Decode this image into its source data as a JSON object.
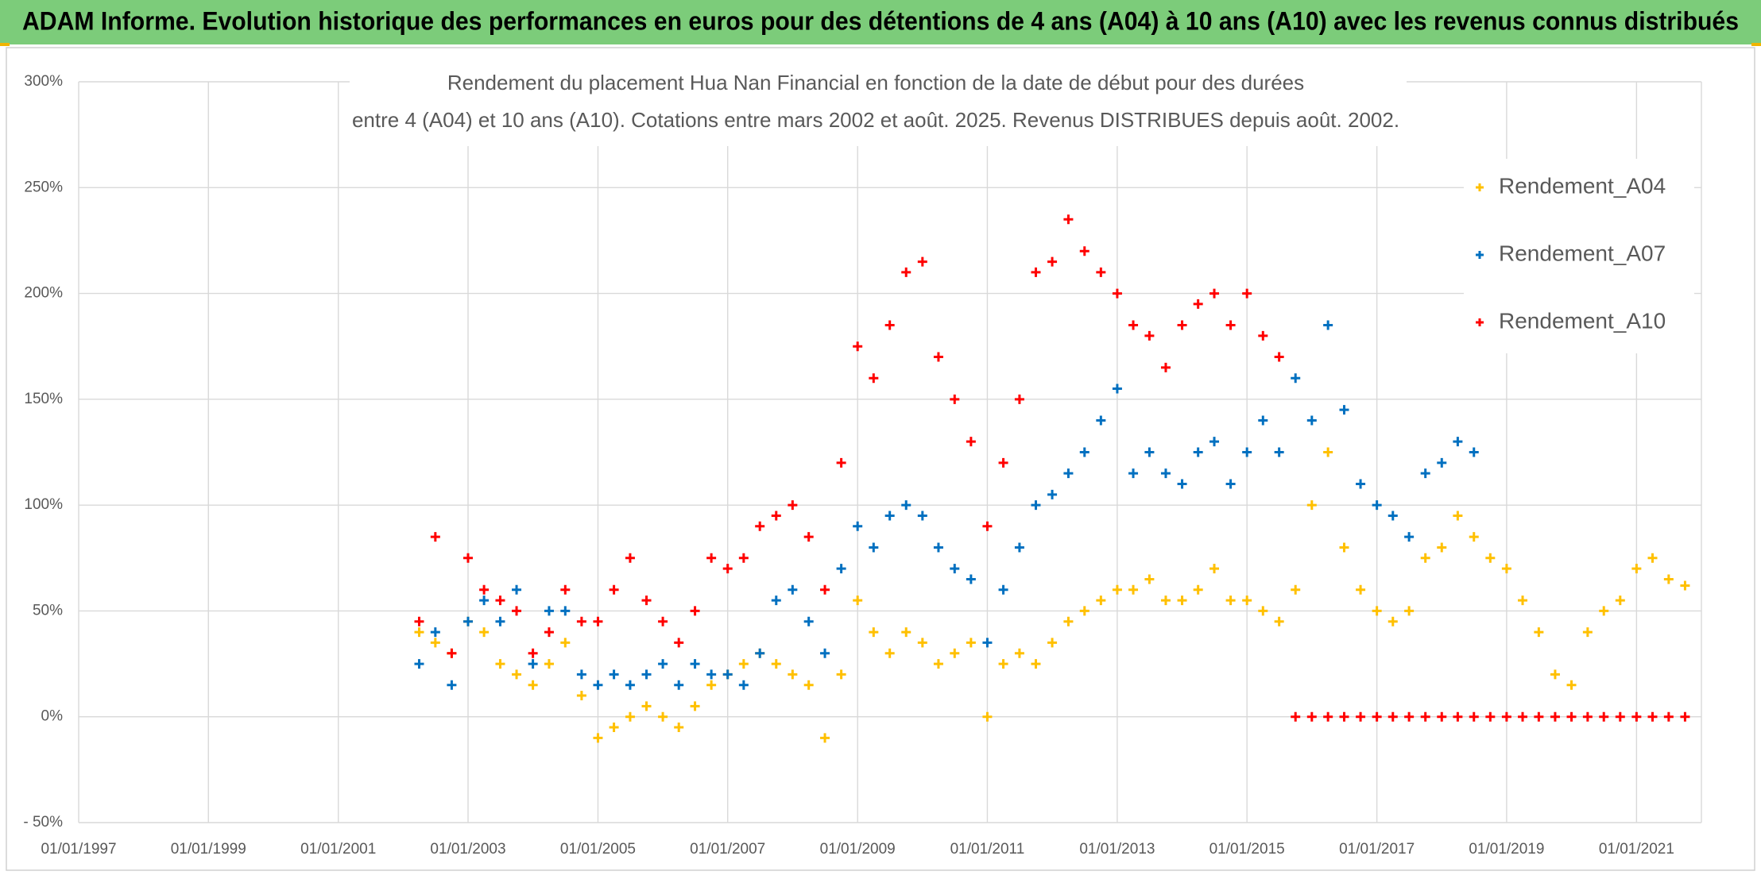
{
  "header": {
    "title": "ADAM Informe. Evolution historique des performances en euros pour des détentions de 4 ans (A04) à 10 ans (A10) avec les revenus connus distribués"
  },
  "chart_data": {
    "type": "scatter",
    "title": [
      "Rendement du placement Hua Nan Financial  en fonction de la date de début pour des durées",
      "entre 4 (A04) et 10 ans (A10). Cotations entre mars 2002 et août. 2025. Revenus DISTRIBUES depuis août. 2002."
    ],
    "x": [
      "01/04/2002",
      "01/07/2002",
      "01/10/2002",
      "01/01/2003",
      "01/04/2003",
      "01/07/2003",
      "01/10/2003",
      "01/01/2004",
      "01/04/2004",
      "01/07/2004",
      "01/10/2004",
      "01/01/2005",
      "01/04/2005",
      "01/07/2005",
      "01/10/2005",
      "01/01/2006",
      "01/04/2006",
      "01/07/2006",
      "01/10/2006",
      "01/01/2007",
      "01/04/2007",
      "01/07/2007",
      "01/10/2007",
      "01/01/2008",
      "01/04/2008",
      "01/07/2008",
      "01/10/2008",
      "01/01/2009",
      "01/04/2009",
      "01/07/2009",
      "01/10/2009",
      "01/01/2010",
      "01/04/2010",
      "01/07/2010",
      "01/10/2010",
      "01/01/2011",
      "01/04/2011",
      "01/07/2011",
      "01/10/2011",
      "01/01/2012",
      "01/04/2012",
      "01/07/2012",
      "01/10/2012",
      "01/01/2013",
      "01/04/2013",
      "01/07/2013",
      "01/10/2013",
      "01/01/2014",
      "01/04/2014",
      "01/07/2014",
      "01/10/2014",
      "01/01/2015",
      "01/04/2015",
      "01/07/2015",
      "01/10/2015",
      "01/01/2016",
      "01/04/2016",
      "01/07/2016",
      "01/10/2016",
      "01/01/2017",
      "01/04/2017",
      "01/07/2017",
      "01/10/2017",
      "01/01/2018",
      "01/04/2018",
      "01/07/2018",
      "01/10/2018",
      "01/01/2019",
      "01/04/2019",
      "01/07/2019",
      "01/10/2019",
      "01/01/2020",
      "01/04/2020",
      "01/07/2020",
      "01/10/2020",
      "01/01/2021",
      "01/04/2021",
      "01/07/2021",
      "01/10/2021"
    ],
    "series": [
      {
        "name": "Rendement_A04",
        "color": "#ffc000",
        "values": [
          40,
          35,
          30,
          45,
          40,
          25,
          20,
          15,
          25,
          35,
          10,
          -10,
          -5,
          0,
          5,
          0,
          -5,
          5,
          15,
          20,
          25,
          30,
          25,
          20,
          15,
          -10,
          20,
          55,
          40,
          30,
          40,
          35,
          25,
          30,
          35,
          0,
          25,
          30,
          25,
          35,
          45,
          50,
          55,
          60,
          60,
          65,
          55,
          55,
          60,
          70,
          55,
          55,
          50,
          45,
          60,
          100,
          125,
          80,
          60,
          50,
          45,
          50,
          75,
          80,
          95,
          85,
          75,
          70,
          55,
          40,
          20,
          15,
          40,
          50,
          55,
          70,
          75,
          65,
          62
        ]
      },
      {
        "name": "Rendement_A07",
        "color": "#0070c0",
        "values": [
          25,
          40,
          15,
          45,
          55,
          45,
          60,
          25,
          50,
          50,
          20,
          15,
          20,
          15,
          20,
          25,
          15,
          25,
          20,
          20,
          15,
          30,
          55,
          60,
          45,
          30,
          70,
          90,
          80,
          95,
          100,
          95,
          80,
          70,
          65,
          35,
          60,
          80,
          100,
          105,
          115,
          125,
          140,
          155,
          115,
          125,
          115,
          110,
          125,
          130,
          110,
          125,
          140,
          125,
          160,
          140,
          185,
          145,
          110,
          100,
          95,
          85,
          115,
          120,
          130,
          125,
          null,
          null,
          null,
          null,
          null,
          null,
          null,
          null,
          null,
          null,
          null,
          null,
          null
        ]
      },
      {
        "name": "Rendement_A10",
        "color": "#ff0000",
        "values": [
          45,
          85,
          30,
          75,
          60,
          55,
          50,
          30,
          40,
          60,
          45,
          45,
          60,
          75,
          55,
          45,
          35,
          50,
          75,
          70,
          75,
          90,
          95,
          100,
          85,
          60,
          120,
          175,
          160,
          185,
          210,
          215,
          170,
          150,
          130,
          90,
          120,
          150,
          210,
          215,
          235,
          220,
          210,
          200,
          185,
          180,
          165,
          185,
          195,
          200,
          185,
          200,
          180,
          170,
          0,
          0,
          0,
          0,
          0,
          0,
          0,
          0,
          0,
          0,
          0,
          0,
          0,
          0,
          0,
          0,
          0,
          0,
          0,
          0,
          0,
          0,
          0,
          0,
          0
        ]
      }
    ],
    "xlim": [
      "01/01/1997",
      "01/01/2022"
    ],
    "xticks": [
      "01/01/1997",
      "01/01/1999",
      "01/01/2001",
      "01/01/2003",
      "01/01/2005",
      "01/01/2007",
      "01/01/2009",
      "01/01/2011",
      "01/01/2013",
      "01/01/2015",
      "01/01/2017",
      "01/01/2019",
      "01/01/2021"
    ],
    "ylim": [
      -50,
      300
    ],
    "yticks": [
      {
        "value": -50,
        "label": "- 50%"
      },
      {
        "value": 0,
        "label": "0%"
      },
      {
        "value": 50,
        "label": "50%"
      },
      {
        "value": 100,
        "label": "100%"
      },
      {
        "value": 150,
        "label": "150%"
      },
      {
        "value": 200,
        "label": "200%"
      },
      {
        "value": 250,
        "label": "250%"
      },
      {
        "value": 300,
        "label": "300%"
      }
    ],
    "grid": true,
    "legend": "top-right"
  }
}
